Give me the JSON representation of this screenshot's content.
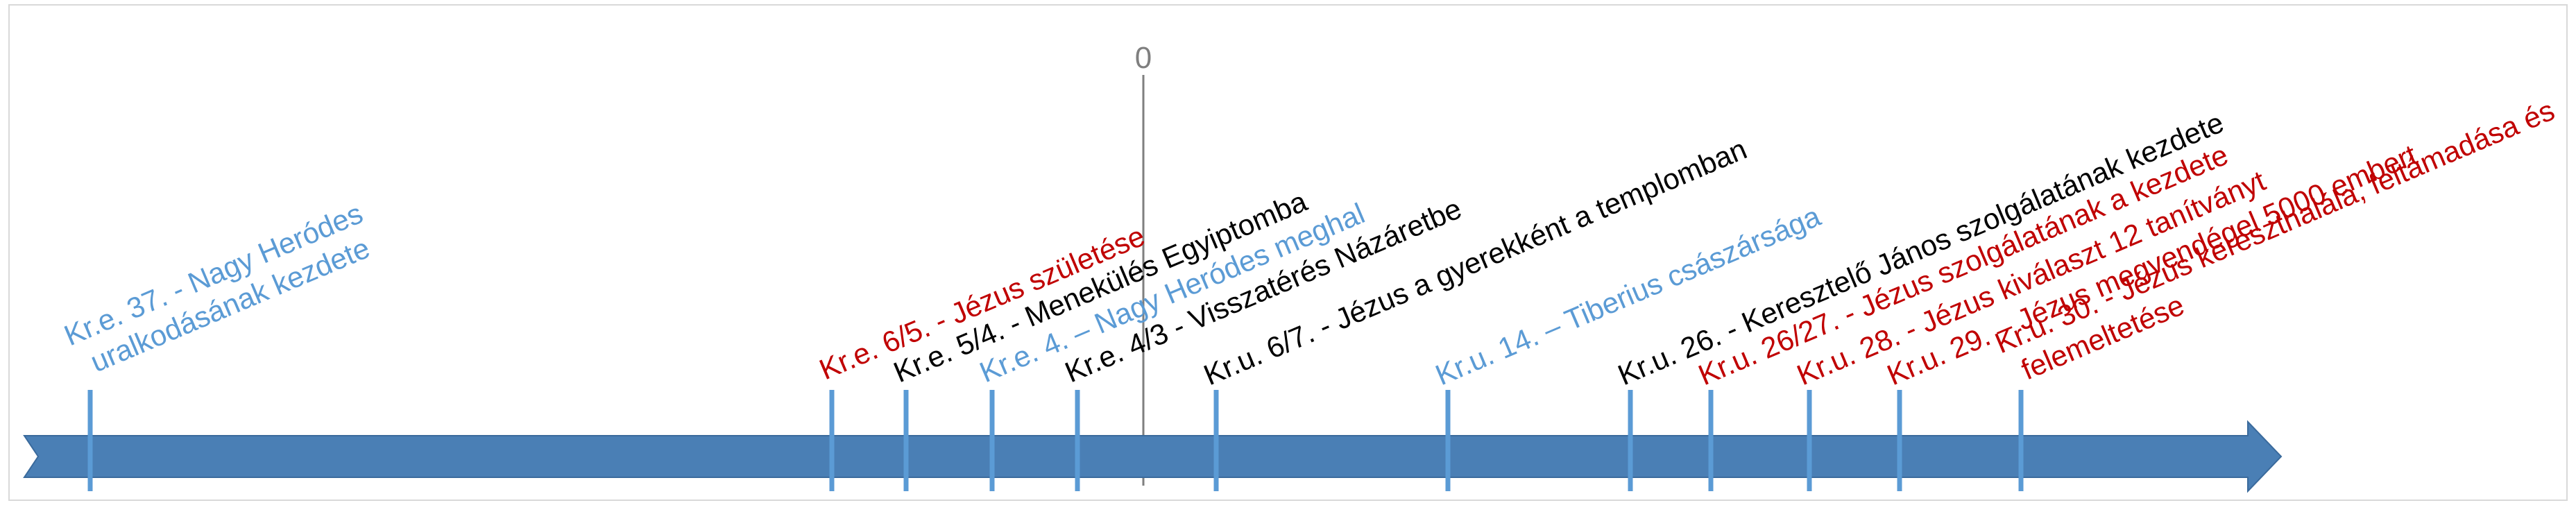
{
  "diagram": {
    "zero_label": "0",
    "colors": {
      "arrow": "#4a7fb5",
      "arrow_edge": "#3a6a9c",
      "tick": "#5b9bd5",
      "zero_line": "#7f7f7f",
      "black": "#000000",
      "red": "#c00000",
      "blue": "#5b9bd5"
    },
    "events": [
      {
        "id": "nagy-herodes-uralkodas",
        "lines": [
          "Kr.e. 37. - Nagy Heródes",
          "uralkodásának kezdete"
        ],
        "color": "blue"
      },
      {
        "id": "jezus-szuletese",
        "lines": [
          "Kr.e. 6/5. - Jézus születése"
        ],
        "color": "red"
      },
      {
        "id": "menekules-egyiptomba",
        "lines": [
          "Kr.e. 5/4. - Menekülés Egyiptomba"
        ],
        "color": "black"
      },
      {
        "id": "nagy-herodes-meghal",
        "lines": [
          "Kr.e. 4. – Nagy Heródes meghal"
        ],
        "color": "blue"
      },
      {
        "id": "visszateres-nazaretbe",
        "lines": [
          "Kr.e. 4/3 - Visszatérés Názáretbe"
        ],
        "color": "black"
      },
      {
        "id": "jezus-templomban",
        "lines": [
          "Kr.u. 6/7. - Jézus a gyerekként a templomban"
        ],
        "color": "black"
      },
      {
        "id": "tiberius-csaszarsaga",
        "lines": [
          "Kr.u. 14. – Tiberius császársága"
        ],
        "color": "blue"
      },
      {
        "id": "keresztelo-janos",
        "lines": [
          "Kr.u. 26. - Keresztelő János szolgálatának kezdete"
        ],
        "color": "black"
      },
      {
        "id": "jezus-szolgalata",
        "lines": [
          "Kr.u. 26/27. - Jézus szolgálatának a kezdete"
        ],
        "color": "red"
      },
      {
        "id": "tizenket-tanitvany",
        "lines": [
          "Kr.u. 28. - Jézus kiválaszt 12 tanítványt"
        ],
        "color": "red"
      },
      {
        "id": "otezer-ember",
        "lines": [
          "Kr.u. 29. – Jézus megvendégel 5000 embert"
        ],
        "color": "red"
      },
      {
        "id": "kereszthalal-feltamadas",
        "lines": [
          "Kr.u. 30. - Jézus kereszthalála, feltámadása és",
          "felemeltetése"
        ],
        "color": "red"
      }
    ]
  }
}
